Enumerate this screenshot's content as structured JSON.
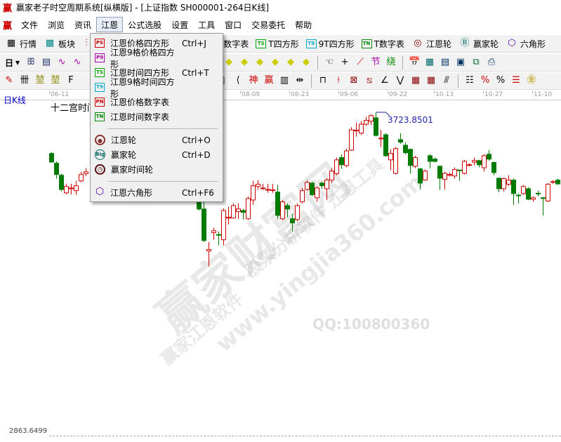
{
  "window": {
    "title": "赢家老子时空周期系统[纵横版] - [上证指数  SH000001-264日K线]",
    "logo": "赢"
  },
  "menubar": {
    "logo": "赢",
    "items": [
      "文件",
      "浏览",
      "资讯",
      "江恩",
      "公式选股",
      "设置",
      "工具",
      "窗口",
      "交易委托",
      "帮助"
    ],
    "active": "江恩"
  },
  "toolbar1": {
    "quote": "行情",
    "sector": "板块",
    "items": [
      {
        "badge": "PN",
        "label": "P数字表",
        "color": "#c00000"
      },
      {
        "badge": "TS",
        "label": "T四方形",
        "color": "#00a000"
      },
      {
        "badge": "T9",
        "label": "9T四方形",
        "color": "#00a0c0"
      },
      {
        "badge": "TN",
        "label": "T数字表",
        "color": "#008000"
      }
    ],
    "wheels": [
      {
        "label": "江恩轮",
        "icon": "gann-wheel-icon"
      },
      {
        "label": "赢家轮",
        "icon": "big-wheel-icon"
      },
      {
        "label": "六角形",
        "icon": "hexagon-icon"
      }
    ]
  },
  "toolbar2": {
    "period": "日"
  },
  "chart": {
    "period_label": "日K线",
    "indicator_label": "十二宫时间",
    "dates": [
      "06-11",
      "08-09",
      "08-23",
      "09-06",
      "09-22",
      "10-13",
      "10-27",
      "11-10"
    ],
    "high_label": "3723.8501",
    "low_label": "2863.6499"
  },
  "jiangen_menu": {
    "items": [
      {
        "badge": "PS",
        "label": "江恩价格四方形",
        "shortcut": "Ctrl+J",
        "color": "#c00000"
      },
      {
        "badge": "P9",
        "label": "江恩9格价格四方形",
        "shortcut": "",
        "color": "#a000a0"
      },
      {
        "badge": "TS",
        "label": "江恩时间四方形",
        "shortcut": "Ctrl+T",
        "color": "#00a000"
      },
      {
        "badge": "T9",
        "label": "江恩9格时间四方形",
        "shortcut": "",
        "color": "#00a0c0"
      },
      {
        "badge": "PN",
        "label": "江恩价格数字表",
        "shortcut": "",
        "color": "#c00000"
      },
      {
        "badge": "TN",
        "label": "江恩时间数字表",
        "shortcut": "",
        "color": "#008000"
      }
    ],
    "wheels": [
      {
        "label": "江恩轮",
        "shortcut": "Ctrl+O",
        "icon": "gann-wheel-icon"
      },
      {
        "label": "赢家轮",
        "shortcut": "Ctrl+D",
        "icon": "big-wheel-icon"
      },
      {
        "label": "赢家时间轮",
        "shortcut": "",
        "icon": "clock-icon"
      }
    ],
    "hexagon": {
      "label": "江恩六角形",
      "shortcut": "Ctrl+F6",
      "icon": "hexagon-icon"
    }
  },
  "watermark": {
    "main": "赢家财富网",
    "sub": "股票分析软件 江恩工具",
    "brand": "赢家江恩软件",
    "url": "www.yingjia360.com",
    "qq": "QQ:100800360"
  },
  "colors": {
    "up": "#d00000",
    "down": "#007a00",
    "accent": "#2020a0"
  },
  "chart_data": {
    "type": "candlestick",
    "ylim": [
      2863.6499,
      3723.8501
    ],
    "note_hidden": null,
    "candles": [
      [
        3614,
        3591,
        3618,
        3590
      ],
      [
        3588,
        3558,
        3593,
        3547
      ],
      [
        3556,
        3518,
        3560,
        3513
      ],
      [
        3509,
        3526,
        3533,
        3505
      ],
      [
        3520,
        3522,
        3533,
        3505
      ],
      [
        3515,
        3528,
        3541,
        3504
      ],
      [
        3541,
        3558,
        3565,
        3537
      ],
      [
        3560,
        3565,
        3575,
        3554
      ],
      null,
      null,
      null,
      null,
      null,
      null,
      null,
      null,
      null,
      null,
      null,
      null,
      null,
      null,
      null,
      null,
      null,
      null,
      null,
      null,
      null,
      null,
      [
        3485,
        3466,
        3490,
        3462
      ],
      [
        3466,
        3382,
        3485,
        3378
      ],
      [
        3354,
        3358,
        3378,
        3313
      ],
      [
        3403,
        3408,
        3416,
        3384
      ],
      [
        3398,
        3397,
        3406,
        3369
      ],
      [
        3384,
        3462,
        3468,
        3369
      ],
      [
        3442,
        3444,
        3472,
        3425
      ],
      [
        3442,
        3475,
        3481,
        3440
      ],
      [
        3459,
        3466,
        3481,
        3440
      ],
      [
        3462,
        3457,
        3466,
        3438
      ],
      [
        3440,
        3494,
        3500,
        3436
      ],
      [
        3490,
        3528,
        3541,
        3477
      ],
      [
        3526,
        3532,
        3543,
        3518
      ],
      [
        3520,
        3522,
        3533,
        3517
      ],
      [
        3517,
        3518,
        3533,
        3509
      ],
      [
        3516,
        3517,
        3533,
        3509
      ],
      [
        3511,
        3449,
        3530,
        3440
      ],
      [
        3440,
        3485,
        3490,
        3436
      ],
      [
        3475,
        3466,
        3481,
        3444
      ],
      [
        3440,
        3429,
        3453,
        3406
      ],
      [
        3438,
        3475,
        3481,
        3434
      ],
      [
        3485,
        3515,
        3522,
        3481
      ],
      [
        3518,
        3537,
        3543,
        3515
      ],
      [
        3535,
        3504,
        3539,
        3500
      ],
      [
        3496,
        3522,
        3526,
        3485
      ],
      [
        3535,
        3528,
        3539,
        3520
      ],
      [
        3520,
        3543,
        3548,
        3490
      ],
      [
        3543,
        3567,
        3575,
        3535
      ],
      [
        3560,
        3597,
        3603,
        3556
      ],
      [
        3603,
        3584,
        3612,
        3573
      ],
      [
        3582,
        3621,
        3627,
        3577
      ],
      [
        3623,
        3677,
        3684,
        3621
      ],
      [
        3675,
        3676,
        3696,
        3659
      ],
      [
        3668,
        3692,
        3700,
        3664
      ],
      [
        3692,
        3702,
        3712,
        3688
      ],
      [
        3700,
        3715,
        3719,
        3690
      ],
      [
        3709,
        3662,
        3723.85,
        3659
      ],
      [
        3653,
        3655,
        3677,
        3631
      ],
      [
        3664,
        3608,
        3668,
        3605
      ],
      [
        3597,
        3614,
        3625,
        3569
      ],
      [
        3561,
        3627,
        3631,
        3558
      ],
      [
        3651,
        3644,
        3668,
        3640
      ],
      [
        3636,
        3616,
        3644,
        3612
      ],
      [
        3625,
        3582,
        3627,
        3560
      ],
      [
        3580,
        3603,
        3608,
        3575
      ],
      [
        3573,
        3535,
        3575,
        3518
      ],
      [
        3543,
        3567,
        3571,
        3541
      ],
      [
        3608,
        3593,
        3612,
        3575
      ],
      [
        3599,
        3593,
        3603,
        3590
      ],
      [
        3580,
        3548,
        3582,
        3517
      ],
      [
        3545,
        3561,
        3565,
        3518
      ],
      [
        3557,
        3558,
        3563,
        3552
      ],
      [
        3554,
        3571,
        3577,
        3547
      ],
      [
        3570,
        3569,
        3571,
        3541
      ],
      [
        3561,
        3593,
        3597,
        3558
      ],
      [
        3583,
        3584,
        3588,
        3580
      ],
      [
        3591,
        3595,
        3603,
        3582
      ],
      [
        3595,
        3584,
        3597,
        3577
      ],
      [
        3576,
        3608,
        3612,
        3566
      ],
      [
        3612,
        3599,
        3623,
        3595
      ],
      [
        3590,
        3563,
        3592,
        3556
      ],
      [
        3548,
        3520,
        3550,
        3511
      ],
      [
        3520,
        3547,
        3550,
        3513
      ],
      [
        3532,
        3543,
        3556,
        3528
      ],
      [
        3543,
        3507,
        3547,
        3477
      ],
      [
        3503,
        3502,
        3507,
        3481
      ],
      [
        3507,
        3526,
        3530,
        3504
      ],
      [
        3520,
        3492,
        3524,
        3490
      ],
      [
        3492,
        3496,
        3500,
        3485
      ],
      [
        3508,
        3507,
        3515,
        3500
      ],
      [
        3496,
        3494,
        3498,
        3449
      ],
      [
        3487,
        3532,
        3535,
        3485
      ],
      [
        3537,
        3539,
        3543,
        3533
      ],
      [
        3543,
        3533,
        3547,
        3530
      ]
    ],
    "candle_fields": [
      "open",
      "close",
      "high",
      "low"
    ]
  }
}
